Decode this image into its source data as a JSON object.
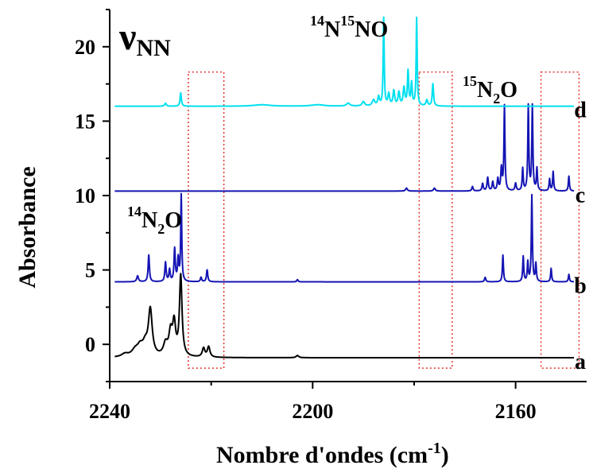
{
  "chart_data": {
    "type": "line",
    "xlabel_main": "Nombre d'ondes (cm",
    "xlabel_sup": "-1",
    "xlabel_close": ")",
    "ylabel": "Absorbance",
    "xlim": [
      2240,
      2146
    ],
    "ylim": [
      -2.5,
      22.5
    ],
    "x_ticks": [
      2240,
      2200,
      2160
    ],
    "y_ticks": [
      0,
      5,
      10,
      15,
      20
    ],
    "grid": false,
    "annotations": {
      "nu_symbol": "ν",
      "nu_sub": "NN",
      "n14n2o_sup": "14",
      "n14n2o_n": "N",
      "n14n2o_sub": "2",
      "n14n2o_o": "O",
      "n14n15no_sup1": "14",
      "n14n15no_n1": "N",
      "n14n15no_sup2": "15",
      "n14n15no_rest": "NO",
      "n15n2o_sup": "15",
      "n15n2o_n": "N",
      "n15n2o_sub": "2",
      "n15n2o_o": "O"
    },
    "series": [
      {
        "label": "a",
        "color": "#000000",
        "baseline": -0.9,
        "x_start": 2239,
        "x_end": 2148.5,
        "peaks": [
          {
            "x": 2237,
            "h": 0.2,
            "w": 0.8
          },
          {
            "x": 2235,
            "h": 0.4,
            "w": 0.8
          },
          {
            "x": 2234,
            "h": 0.6,
            "w": 0.7
          },
          {
            "x": 2233,
            "h": 0.7,
            "w": 0.6
          },
          {
            "x": 2232,
            "h": 3.1,
            "w": 0.45
          },
          {
            "x": 2229,
            "h": 0.8,
            "w": 0.5
          },
          {
            "x": 2228,
            "h": 1.5,
            "w": 0.4
          },
          {
            "x": 2227.3,
            "h": 2.1,
            "w": 0.35
          },
          {
            "x": 2226,
            "h": 5.4,
            "w": 0.3
          },
          {
            "x": 2221.5,
            "h": 0.6,
            "w": 0.3
          },
          {
            "x": 2220.5,
            "h": 0.7,
            "w": 0.3
          },
          {
            "x": 2203,
            "h": 0.15,
            "w": 0.3
          }
        ]
      },
      {
        "label": "b",
        "color": "#1414b4",
        "baseline": 4.2,
        "x_start": 2239,
        "x_end": 2148.5,
        "peaks": [
          {
            "x": 2234.5,
            "h": 0.4,
            "w": 0.2
          },
          {
            "x": 2232.3,
            "h": 1.8,
            "w": 0.15
          },
          {
            "x": 2229,
            "h": 1.3,
            "w": 0.15
          },
          {
            "x": 2228.2,
            "h": 0.8,
            "w": 0.15
          },
          {
            "x": 2227.2,
            "h": 2.2,
            "w": 0.15
          },
          {
            "x": 2226.5,
            "h": 1.5,
            "w": 0.15
          },
          {
            "x": 2225.9,
            "h": 5.8,
            "w": 0.12
          },
          {
            "x": 2222,
            "h": 0.3,
            "w": 0.15
          },
          {
            "x": 2220.8,
            "h": 0.8,
            "w": 0.15
          },
          {
            "x": 2203,
            "h": 0.15,
            "w": 0.15
          },
          {
            "x": 2166,
            "h": 0.3,
            "w": 0.15
          },
          {
            "x": 2162.5,
            "h": 1.8,
            "w": 0.12
          },
          {
            "x": 2158.5,
            "h": 1.7,
            "w": 0.12
          },
          {
            "x": 2157.6,
            "h": 1.3,
            "w": 0.12
          },
          {
            "x": 2156.8,
            "h": 5.8,
            "w": 0.12
          },
          {
            "x": 2156,
            "h": 1.2,
            "w": 0.12
          },
          {
            "x": 2153,
            "h": 0.9,
            "w": 0.12
          },
          {
            "x": 2149.5,
            "h": 0.5,
            "w": 0.12
          }
        ]
      },
      {
        "label": "c",
        "color": "#1414b4",
        "baseline": 10.3,
        "x_start": 2239,
        "x_end": 2148.5,
        "peaks": [
          {
            "x": 2181.5,
            "h": 0.2,
            "w": 0.2
          },
          {
            "x": 2176,
            "h": 0.2,
            "w": 0.2
          },
          {
            "x": 2168.5,
            "h": 0.3,
            "w": 0.15
          },
          {
            "x": 2166.5,
            "h": 0.5,
            "w": 0.15
          },
          {
            "x": 2165.5,
            "h": 0.9,
            "w": 0.15
          },
          {
            "x": 2164.5,
            "h": 0.6,
            "w": 0.15
          },
          {
            "x": 2163.5,
            "h": 0.8,
            "w": 0.15
          },
          {
            "x": 2162.8,
            "h": 1.5,
            "w": 0.15
          },
          {
            "x": 2162.2,
            "h": 5.7,
            "w": 0.12
          },
          {
            "x": 2160,
            "h": 0.5,
            "w": 0.15
          },
          {
            "x": 2158.6,
            "h": 1.5,
            "w": 0.12
          },
          {
            "x": 2157.5,
            "h": 5.7,
            "w": 0.12
          },
          {
            "x": 2156.7,
            "h": 5.7,
            "w": 0.12
          },
          {
            "x": 2155.8,
            "h": 1.5,
            "w": 0.12
          },
          {
            "x": 2153.3,
            "h": 0.8,
            "w": 0.12
          },
          {
            "x": 2152.6,
            "h": 1.3,
            "w": 0.12
          },
          {
            "x": 2149.5,
            "h": 1.0,
            "w": 0.12
          }
        ]
      },
      {
        "label": "d",
        "color": "#00e0f0",
        "baseline": 16.0,
        "x_start": 2239,
        "x_end": 2148.5,
        "peaks": [
          {
            "x": 2229,
            "h": 0.2,
            "w": 0.2
          },
          {
            "x": 2226,
            "h": 0.9,
            "w": 0.15
          },
          {
            "x": 2210,
            "h": 0.1,
            "w": 2.0
          },
          {
            "x": 2199,
            "h": 0.1,
            "w": 1.5
          },
          {
            "x": 2193,
            "h": 0.2,
            "w": 0.4
          },
          {
            "x": 2190,
            "h": 0.3,
            "w": 0.3
          },
          {
            "x": 2188,
            "h": 0.4,
            "w": 0.3
          },
          {
            "x": 2187,
            "h": 0.6,
            "w": 0.2
          },
          {
            "x": 2186,
            "h": 5.9,
            "w": 0.12
          },
          {
            "x": 2185,
            "h": 0.8,
            "w": 0.2
          },
          {
            "x": 2184,
            "h": 1.0,
            "w": 0.2
          },
          {
            "x": 2183,
            "h": 0.9,
            "w": 0.2
          },
          {
            "x": 2182,
            "h": 1.2,
            "w": 0.2
          },
          {
            "x": 2181.2,
            "h": 2.3,
            "w": 0.15
          },
          {
            "x": 2180.5,
            "h": 1.5,
            "w": 0.15
          },
          {
            "x": 2179.5,
            "h": 5.9,
            "w": 0.12
          },
          {
            "x": 2177.5,
            "h": 0.4,
            "w": 0.2
          },
          {
            "x": 2176.3,
            "h": 1.5,
            "w": 0.15
          }
        ]
      }
    ],
    "highlight_boxes_cm1": [
      {
        "x1": 2224.5,
        "x2": 2217.5,
        "y1": 18.3,
        "y2": -1.6
      },
      {
        "x1": 2179,
        "x2": 2172.5,
        "y1": 18.3,
        "y2": -1.6
      },
      {
        "x1": 2155,
        "x2": 2147.5,
        "y1": 18.3,
        "y2": -1.6
      }
    ],
    "highlight_color": "#e8302a"
  }
}
